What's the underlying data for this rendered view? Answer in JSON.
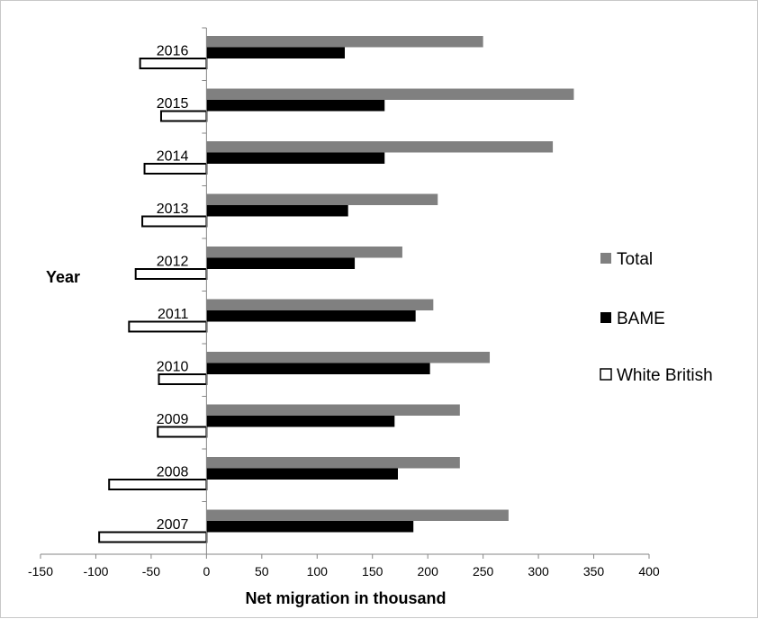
{
  "chart_data": {
    "type": "bar",
    "orientation": "horizontal",
    "categories": [
      "2016",
      "2015",
      "2014",
      "2013",
      "2012",
      "2011",
      "2010",
      "2009",
      "2008",
      "2007"
    ],
    "series": [
      {
        "name": "Total",
        "color": "#808080",
        "values": [
          250,
          332,
          313,
          209,
          177,
          205,
          256,
          229,
          229,
          273
        ]
      },
      {
        "name": "BAME",
        "color": "#000000",
        "values": [
          125,
          161,
          161,
          128,
          134,
          189,
          202,
          170,
          173,
          187
        ]
      },
      {
        "name": "White British",
        "color": "#ffffff",
        "stroke": "#000000",
        "values": [
          -60,
          -41,
          -56,
          -58,
          -64,
          -70,
          -43,
          -44,
          -88,
          -97
        ]
      }
    ],
    "xlabel": "Net migration in thousand",
    "ylabel": "Year",
    "xlim": [
      -150,
      400
    ],
    "xticks": [
      -150,
      -100,
      -50,
      0,
      50,
      100,
      150,
      200,
      250,
      300,
      350,
      400
    ],
    "grid": false,
    "legend_position": "right"
  }
}
